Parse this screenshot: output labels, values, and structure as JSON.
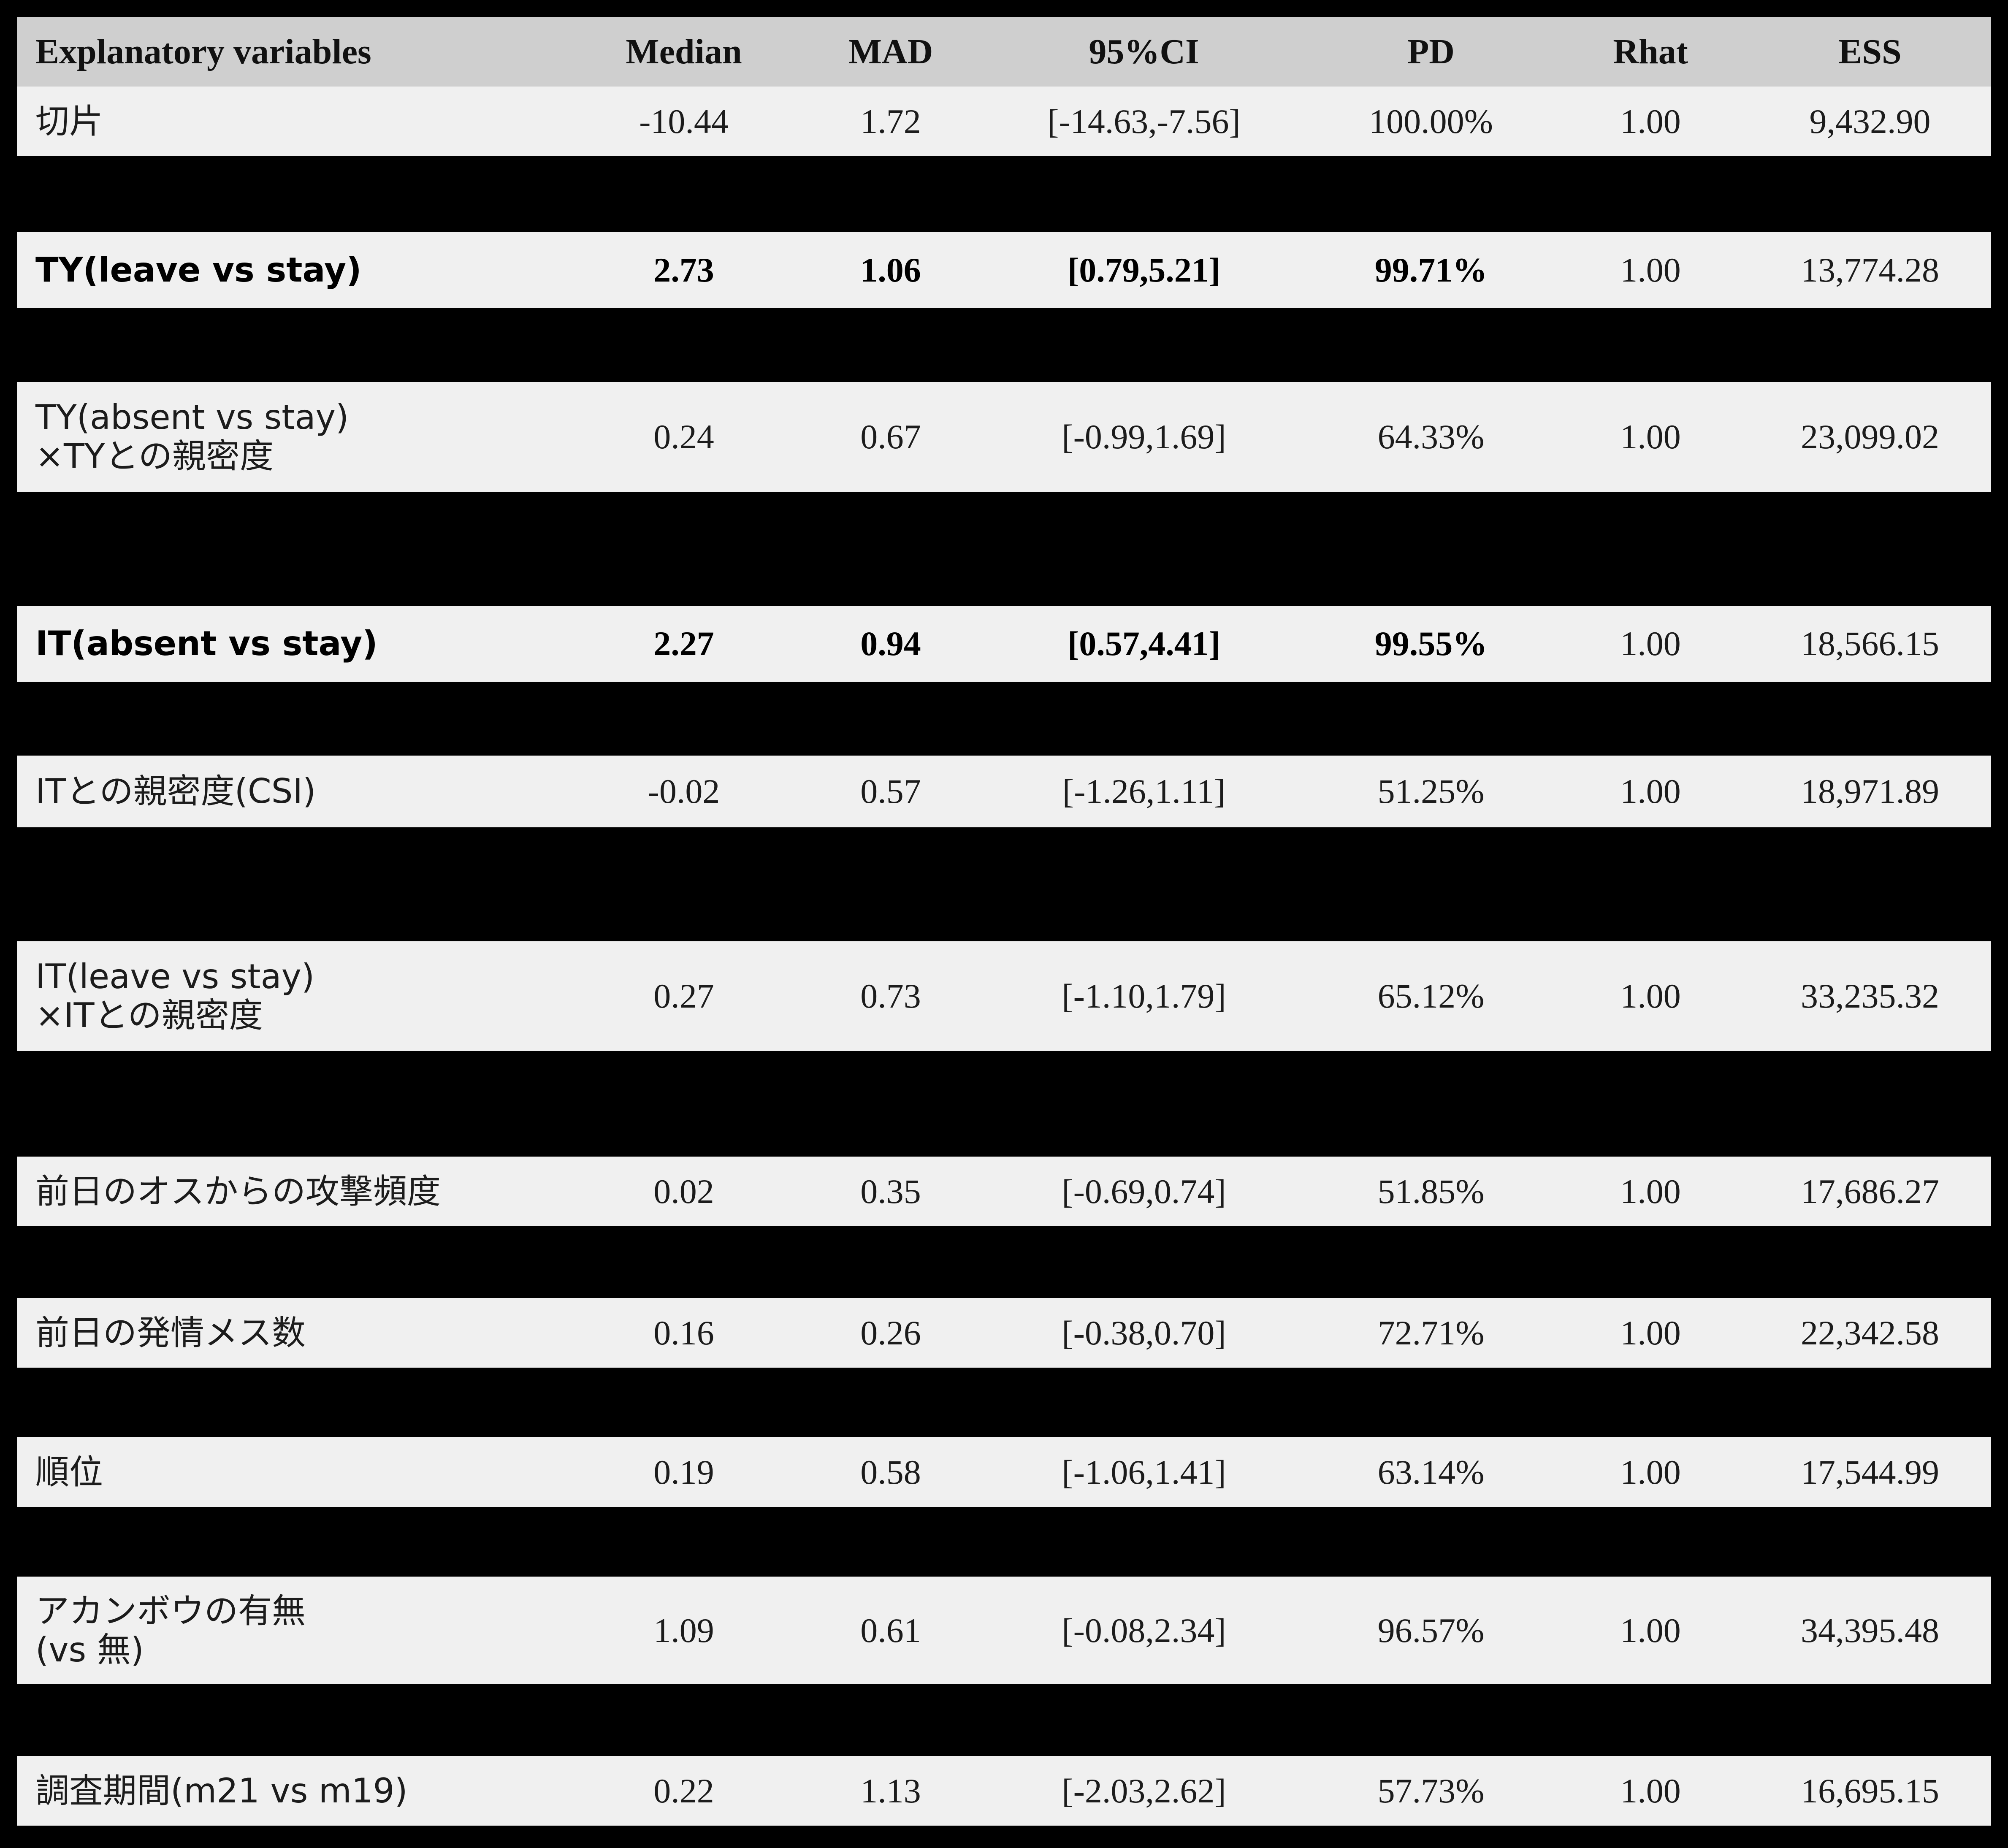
{
  "table": {
    "headers": {
      "variable": "Explanatory variables",
      "median": "Median",
      "mad": "MAD",
      "ci": "95%CI",
      "pd": "PD",
      "rhat": "Rhat",
      "ess": "ESS"
    },
    "rows": [
      {
        "variable": [
          "切片"
        ],
        "median": "-10.44",
        "mad": "1.72",
        "ci": "[-14.63,-7.56]",
        "pd": "100.00%",
        "rhat": "1.00",
        "ess": "9,432.90",
        "bold": false
      },
      {
        "variable": [
          "TY(leave vs stay)"
        ],
        "median": "2.73",
        "mad": "1.06",
        "ci": "[0.79,5.21]",
        "pd": "99.71%",
        "rhat": "1.00",
        "ess": "13,774.28",
        "bold": true
      },
      {
        "variable": [
          "TY(absent vs stay)",
          " ×TYとの親密度"
        ],
        "median": "0.24",
        "mad": "0.67",
        "ci": "[-0.99,1.69]",
        "pd": "64.33%",
        "rhat": "1.00",
        "ess": "23,099.02",
        "bold": false
      },
      {
        "variable": [
          "IT(absent vs stay)"
        ],
        "median": "2.27",
        "mad": "0.94",
        "ci": "[0.57,4.41]",
        "pd": "99.55%",
        "rhat": "1.00",
        "ess": "18,566.15",
        "bold": true
      },
      {
        "variable": [
          "ITとの親密度(CSI)"
        ],
        "median": "-0.02",
        "mad": "0.57",
        "ci": "[-1.26,1.11]",
        "pd": "51.25%",
        "rhat": "1.00",
        "ess": "18,971.89",
        "bold": false
      },
      {
        "variable": [
          "IT(leave vs stay)",
          " ×ITとの親密度"
        ],
        "median": "0.27",
        "mad": "0.73",
        "ci": "[-1.10,1.79]",
        "pd": "65.12%",
        "rhat": "1.00",
        "ess": "33,235.32",
        "bold": false
      },
      {
        "variable": [
          "前日のオスからの攻撃頻度"
        ],
        "median": "0.02",
        "mad": "0.35",
        "ci": "[-0.69,0.74]",
        "pd": "51.85%",
        "rhat": "1.00",
        "ess": "17,686.27",
        "bold": false
      },
      {
        "variable": [
          "前日の発情メス数"
        ],
        "median": "0.16",
        "mad": "0.26",
        "ci": "[-0.38,0.70]",
        "pd": "72.71%",
        "rhat": "1.00",
        "ess": "22,342.58",
        "bold": false
      },
      {
        "variable": [
          "順位"
        ],
        "median": "0.19",
        "mad": "0.58",
        "ci": "[-1.06,1.41]",
        "pd": "63.14%",
        "rhat": "1.00",
        "ess": "17,544.99",
        "bold": false
      },
      {
        "variable": [
          "アカンボウの有無",
          "(vs 無)"
        ],
        "median": "1.09",
        "mad": "0.61",
        "ci": "[-0.08,2.34]",
        "pd": "96.57%",
        "rhat": "1.00",
        "ess": "34,395.48",
        "bold": false
      },
      {
        "variable": [
          "調査期間(m21 vs m19)"
        ],
        "median": "0.22",
        "mad": "1.13",
        "ci": "[-2.03,2.62]",
        "pd": "57.73%",
        "rhat": "1.00",
        "ess": "16,695.15",
        "bold": false
      }
    ]
  }
}
